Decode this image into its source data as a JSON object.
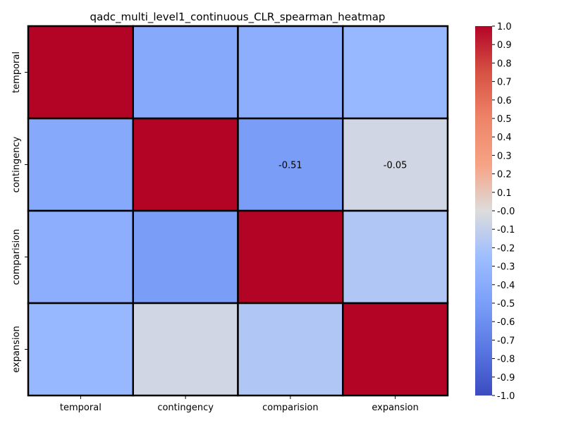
{
  "chart_data": {
    "type": "heatmap",
    "title": "qadc_multi_level1_continuous_CLR_spearman_heatmap",
    "x_categories": [
      "temporal",
      "contingency",
      "comparision",
      "expansion"
    ],
    "y_categories": [
      "temporal",
      "contingency",
      "comparision",
      "expansion"
    ],
    "matrix": [
      [
        1.0,
        -0.42,
        -0.38,
        -0.3
      ],
      [
        -0.42,
        1.0,
        -0.51,
        -0.05
      ],
      [
        -0.38,
        -0.51,
        1.0,
        -0.18
      ],
      [
        -0.3,
        -0.05,
        -0.18,
        1.0
      ]
    ],
    "annotations": [
      {
        "row": 1,
        "col": 2,
        "text": "-0.51"
      },
      {
        "row": 1,
        "col": 3,
        "text": "-0.05"
      }
    ],
    "colormap": "coolwarm",
    "vmin": -1.0,
    "vmax": 1.0,
    "colorbar_ticks": [
      "1.0",
      "0.9",
      "0.8",
      "0.7",
      "0.6",
      "0.5",
      "0.4",
      "0.3",
      "0.2",
      "0.1",
      "-0.0",
      "-0.1",
      "-0.2",
      "-0.3",
      "-0.4",
      "-0.5",
      "-0.6",
      "-0.7",
      "-0.8",
      "-0.9",
      "-1.0"
    ],
    "colorbar_position": "right",
    "grid_lines": true
  }
}
